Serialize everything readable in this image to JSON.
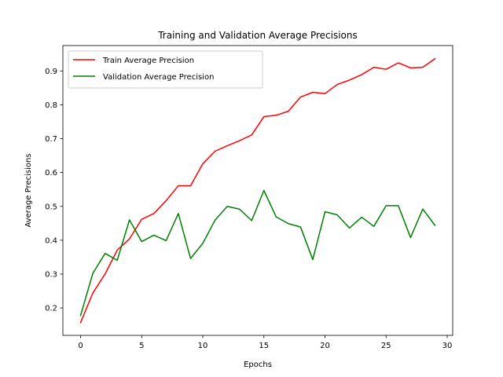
{
  "chart_data": {
    "type": "line",
    "title": "Training and Validation Average Precisions",
    "xlabel": "Epochs",
    "ylabel": "Average Precisions",
    "xlim": [
      -1.45,
      30.45
    ],
    "ylim": [
      0.119,
      0.975
    ],
    "xticks": [
      0,
      5,
      10,
      15,
      20,
      25,
      30
    ],
    "yticks": [
      0.2,
      0.3,
      0.4,
      0.5,
      0.6,
      0.7,
      0.8,
      0.9
    ],
    "grid": false,
    "legend_position": "top-left",
    "x": [
      0,
      1,
      2,
      3,
      4,
      5,
      6,
      7,
      8,
      9,
      10,
      11,
      12,
      13,
      14,
      15,
      16,
      17,
      18,
      19,
      20,
      21,
      22,
      23,
      24,
      25,
      26,
      27,
      28,
      29
    ],
    "series": [
      {
        "name": "Train Average Precision",
        "color": "#ff0000",
        "values": [
          0.157,
          0.244,
          0.3,
          0.371,
          0.404,
          0.462,
          0.479,
          0.517,
          0.561,
          0.561,
          0.626,
          0.663,
          0.679,
          0.694,
          0.711,
          0.765,
          0.769,
          0.781,
          0.823,
          0.837,
          0.833,
          0.86,
          0.873,
          0.889,
          0.911,
          0.905,
          0.924,
          0.909,
          0.911,
          0.936
        ]
      },
      {
        "name": "Validation Average Precision",
        "color": "#008000",
        "values": [
          0.178,
          0.302,
          0.361,
          0.341,
          0.46,
          0.396,
          0.415,
          0.399,
          0.479,
          0.346,
          0.391,
          0.459,
          0.5,
          0.492,
          0.458,
          0.547,
          0.469,
          0.449,
          0.439,
          0.343,
          0.484,
          0.475,
          0.436,
          0.468,
          0.441,
          0.502,
          0.502,
          0.408,
          0.492,
          0.444
        ]
      }
    ]
  }
}
